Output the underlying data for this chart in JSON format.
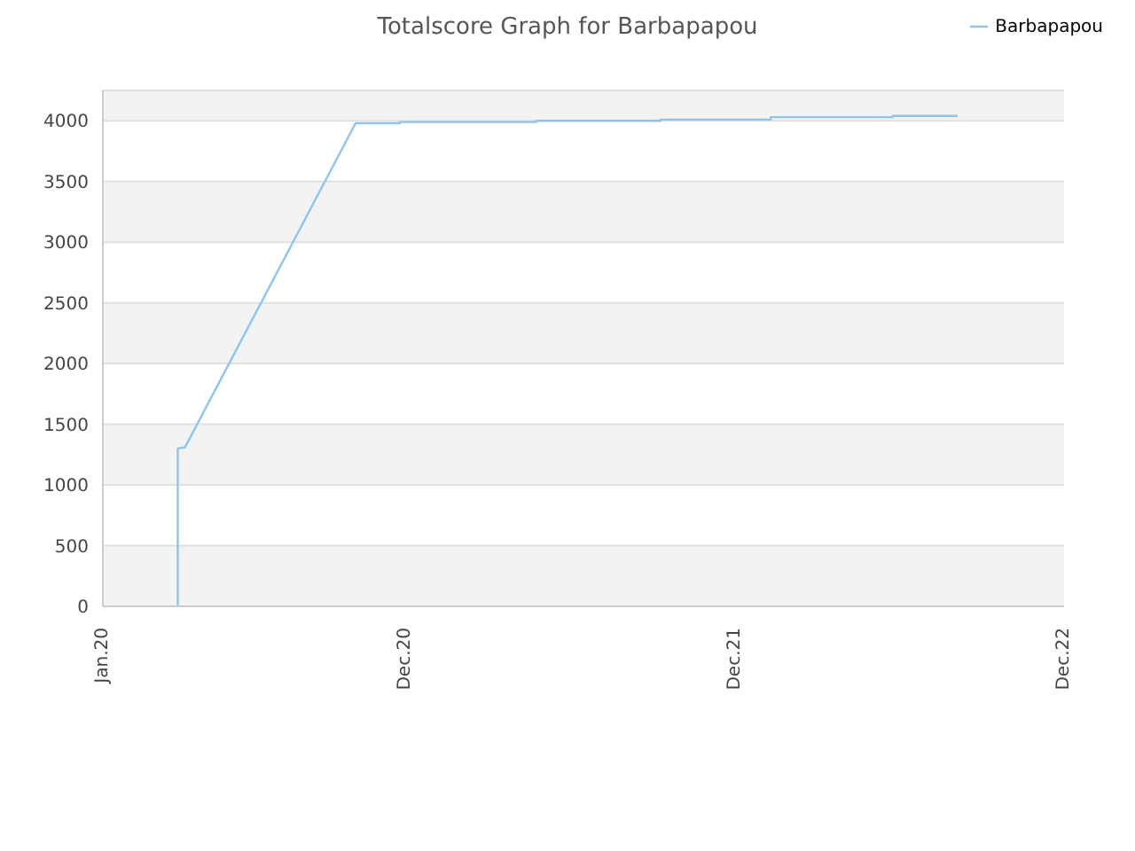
{
  "chart_data": {
    "type": "line",
    "title": "Totalscore Graph for Barbapapou",
    "x": [
      "2020-03-24",
      "2020-03-24",
      "2020-04-01",
      "2020-10-07",
      "2020-11-25",
      "2020-11-25",
      "2021-04-25",
      "2021-04-25",
      "2021-09-10",
      "2021-09-10",
      "2022-01-10",
      "2022-01-10",
      "2022-05-25",
      "2022-05-25",
      "2022-08-05"
    ],
    "series": [
      {
        "name": "Barbapapou",
        "color": "#90c4f0",
        "values": [
          0,
          1300,
          1310,
          3980,
          3980,
          3990,
          3990,
          4000,
          4000,
          4010,
          4010,
          4030,
          4030,
          4040,
          4040
        ]
      }
    ],
    "xlim": [
      "2020-01-01",
      "2022-12-01"
    ],
    "xticks": [
      {
        "value": "2020-01-01",
        "label": "Jan.20"
      },
      {
        "value": "2020-12-01",
        "label": "Dec.20"
      },
      {
        "value": "2021-12-01",
        "label": "Dec.21"
      },
      {
        "value": "2022-12-01",
        "label": "Dec.22"
      }
    ],
    "ylim": [
      0,
      4250
    ],
    "yticks": [
      0,
      500,
      1000,
      1500,
      2000,
      2500,
      3000,
      3500,
      4000
    ],
    "grid": "y",
    "legend": "top right",
    "marker": "none",
    "line_style": "solid"
  }
}
